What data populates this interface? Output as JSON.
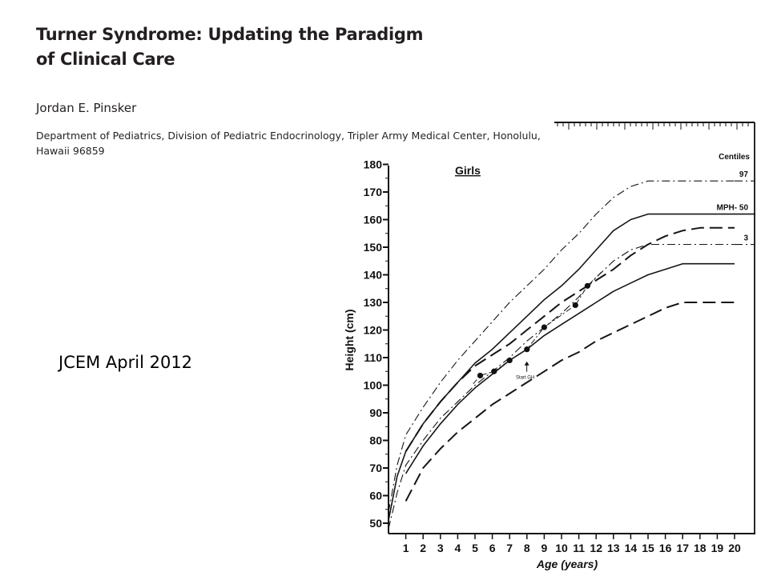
{
  "header": {
    "title_line1": "Turner Syndrome: Updating the Paradigm",
    "title_line2": "of Clinical Care",
    "author": "Jordan E. Pinsker",
    "affiliation_line1": "Department of Pediatrics, Division of Pediatric Endocrinology, Tripler Army Medical Center, Honolulu,",
    "affiliation_line2": "Hawaii 96859"
  },
  "note": "JCEM April 2012",
  "chart_data": {
    "type": "line",
    "title": "Girls",
    "xlabel": "Age (years)",
    "ylabel": "Height (cm)",
    "xlim": [
      0,
      20.5
    ],
    "ylim": [
      47,
      183
    ],
    "x_ticks": [
      1,
      2,
      3,
      4,
      5,
      6,
      7,
      8,
      9,
      10,
      11,
      12,
      13,
      14,
      15,
      16,
      17,
      18,
      19,
      20
    ],
    "y_ticks": [
      50,
      60,
      70,
      80,
      90,
      100,
      110,
      120,
      130,
      140,
      150,
      160,
      170,
      180
    ],
    "legend_title": "Centiles",
    "series": [
      {
        "name": "97",
        "style": "dash-dot",
        "x": [
          0,
          0.5,
          1,
          2,
          3,
          4,
          5,
          6,
          7,
          8,
          9,
          10,
          11,
          12,
          13,
          14,
          15,
          16,
          17,
          18,
          19,
          20
        ],
        "y": [
          54,
          71,
          82,
          92,
          101,
          109,
          116,
          123,
          130,
          136,
          142,
          149,
          155,
          162,
          168,
          172,
          174,
          174,
          174,
          174,
          174,
          174
        ]
      },
      {
        "name": "MPH- 50",
        "style": "solid",
        "x": [
          0,
          0.5,
          1,
          2,
          3,
          4,
          5,
          6,
          7,
          8,
          9,
          10,
          11,
          12,
          13,
          14,
          15,
          16,
          17,
          18,
          19,
          20
        ],
        "y": [
          51,
          67,
          76,
          86,
          94,
          101,
          108,
          113,
          119,
          125,
          131,
          136,
          142,
          149,
          156,
          160,
          162,
          162,
          162,
          162,
          162,
          162
        ]
      },
      {
        "name": "3",
        "style": "dash-dot",
        "x": [
          0,
          0.5,
          1,
          2,
          3,
          4,
          5,
          6,
          7,
          8,
          9,
          10,
          11,
          12,
          13,
          14,
          15,
          16,
          17,
          18,
          19,
          20
        ],
        "y": [
          48,
          61,
          71,
          80,
          88,
          94,
          100,
          105,
          110,
          116,
          121,
          126,
          132,
          139,
          145,
          149,
          151,
          151,
          151,
          151,
          151,
          151
        ]
      },
      {
        "name": "",
        "style": "long-dash",
        "x": [
          1,
          2,
          3,
          4,
          5,
          6,
          7,
          8,
          9,
          10,
          11,
          12,
          13,
          14,
          15,
          16,
          17,
          18,
          19,
          20
        ],
        "y": [
          76,
          86,
          94,
          101,
          107,
          111,
          115,
          120,
          125,
          130,
          134,
          138,
          142,
          147,
          151,
          154,
          156,
          157,
          157,
          157
        ]
      },
      {
        "name": "",
        "style": "solid",
        "x": [
          1,
          2,
          3,
          4,
          5,
          6,
          7,
          8,
          9,
          10,
          11,
          12,
          13,
          14,
          15,
          16,
          17,
          18,
          19,
          20
        ],
        "y": [
          68,
          78,
          86,
          93,
          99,
          104,
          109,
          113,
          118,
          122,
          126,
          130,
          134,
          137,
          140,
          142,
          144,
          144,
          144,
          144
        ]
      },
      {
        "name": "",
        "style": "long-dash",
        "x": [
          1,
          2,
          3,
          4,
          5,
          6,
          7,
          8,
          9,
          10,
          11,
          12,
          13,
          14,
          15,
          16,
          17,
          18,
          19,
          20
        ],
        "y": [
          58,
          70,
          77,
          83,
          88,
          93,
          97,
          101,
          105,
          109,
          112,
          116,
          119,
          122,
          125,
          128,
          130,
          130,
          130,
          130
        ]
      }
    ],
    "patient_points": {
      "x": [
        5.3,
        6.1,
        7.0,
        8.0,
        9.0,
        10.8,
        11.5
      ],
      "y": [
        103.5,
        105,
        109,
        113,
        121,
        129,
        136
      ]
    },
    "annotations": [
      {
        "text": "Start GH",
        "x": 7.9,
        "y": 104
      }
    ]
  }
}
